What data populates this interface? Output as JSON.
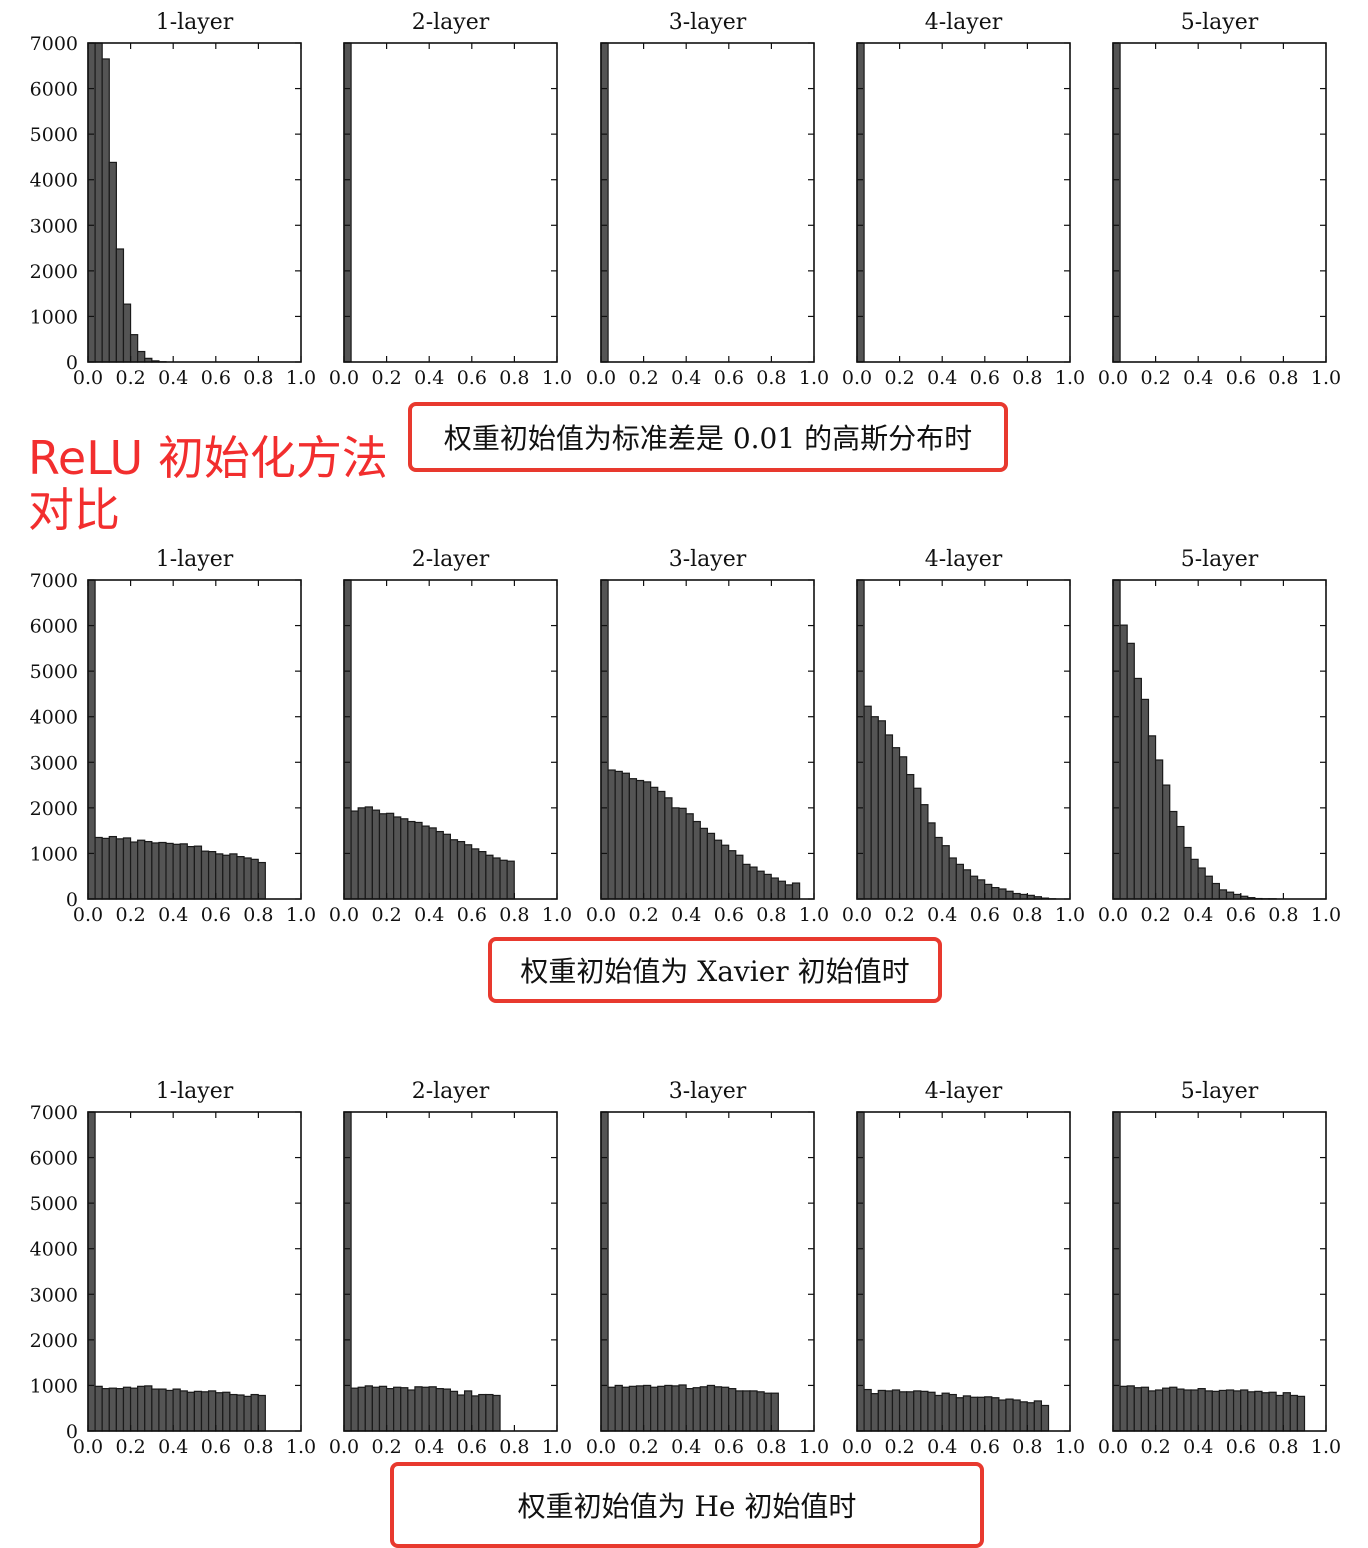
{
  "headline": {
    "line1": "ReLU 初始化方法",
    "line2": "对比"
  },
  "chart_data": [
    {
      "type": "bar",
      "caption": "权重初始值为标准差是 0.01 的高斯分布时",
      "xlim": [
        0.0,
        1.0
      ],
      "ylim": [
        0,
        7000
      ],
      "xticks": [
        "0.0",
        "0.2",
        "0.4",
        "0.6",
        "0.8",
        "1.0"
      ],
      "yticks": [
        "0",
        "1000",
        "2000",
        "3000",
        "4000",
        "5000",
        "6000",
        "7000"
      ],
      "bin_width": 0.0333,
      "panels": [
        {
          "title": "1-layer",
          "values": [
            7000,
            7000,
            6650,
            4380,
            2480,
            1270,
            600,
            230,
            80,
            25,
            5,
            0,
            0,
            0,
            0,
            0,
            0,
            0,
            0,
            0,
            0,
            0,
            0,
            0,
            0,
            0,
            0,
            0,
            0,
            0
          ]
        },
        {
          "title": "2-layer",
          "values": [
            7000,
            0,
            0,
            0,
            0,
            0,
            0,
            0,
            0,
            0,
            0,
            0,
            0,
            0,
            0,
            0,
            0,
            0,
            0,
            0,
            0,
            0,
            0,
            0,
            0,
            0,
            0,
            0,
            0,
            0
          ]
        },
        {
          "title": "3-layer",
          "values": [
            7000,
            0,
            0,
            0,
            0,
            0,
            0,
            0,
            0,
            0,
            0,
            0,
            0,
            0,
            0,
            0,
            0,
            0,
            0,
            0,
            0,
            0,
            0,
            0,
            0,
            0,
            0,
            0,
            0,
            0
          ]
        },
        {
          "title": "4-layer",
          "values": [
            7000,
            0,
            0,
            0,
            0,
            0,
            0,
            0,
            0,
            0,
            0,
            0,
            0,
            0,
            0,
            0,
            0,
            0,
            0,
            0,
            0,
            0,
            0,
            0,
            0,
            0,
            0,
            0,
            0,
            0
          ]
        },
        {
          "title": "5-layer",
          "values": [
            7000,
            0,
            0,
            0,
            0,
            0,
            0,
            0,
            0,
            0,
            0,
            0,
            0,
            0,
            0,
            0,
            0,
            0,
            0,
            0,
            0,
            0,
            0,
            0,
            0,
            0,
            0,
            0,
            0,
            0
          ]
        }
      ]
    },
    {
      "type": "bar",
      "caption": "权重初始值为 Xavier 初始值时",
      "xlim": [
        0.0,
        1.0
      ],
      "ylim": [
        0,
        7000
      ],
      "xticks": [
        "0.0",
        "0.2",
        "0.4",
        "0.6",
        "0.8",
        "1.0"
      ],
      "yticks": [
        "0",
        "1000",
        "2000",
        "3000",
        "4000",
        "5000",
        "6000",
        "7000"
      ],
      "bin_width": 0.0333,
      "panels": [
        {
          "title": "1-layer",
          "values": [
            7000,
            1350,
            1330,
            1370,
            1320,
            1340,
            1250,
            1290,
            1260,
            1230,
            1240,
            1220,
            1200,
            1210,
            1150,
            1160,
            1050,
            1040,
            990,
            960,
            990,
            930,
            900,
            870,
            800,
            0,
            0,
            0,
            0,
            0
          ]
        },
        {
          "title": "2-layer",
          "values": [
            7000,
            1930,
            2000,
            2020,
            1950,
            1870,
            1880,
            1800,
            1760,
            1700,
            1680,
            1600,
            1560,
            1480,
            1420,
            1300,
            1260,
            1190,
            1100,
            1040,
            960,
            900,
            850,
            830,
            0,
            0,
            0,
            0,
            0,
            0
          ]
        },
        {
          "title": "3-layer",
          "values": [
            7000,
            2830,
            2800,
            2760,
            2640,
            2600,
            2570,
            2450,
            2360,
            2220,
            2000,
            1990,
            1870,
            1700,
            1550,
            1440,
            1290,
            1180,
            1060,
            960,
            760,
            700,
            610,
            540,
            460,
            390,
            310,
            350,
            0,
            0
          ]
        },
        {
          "title": "4-layer",
          "values": [
            7000,
            4230,
            4000,
            3910,
            3600,
            3320,
            3120,
            2730,
            2430,
            2070,
            1670,
            1350,
            1170,
            900,
            760,
            640,
            500,
            420,
            320,
            250,
            220,
            170,
            120,
            100,
            80,
            50,
            20,
            5,
            0,
            0
          ]
        },
        {
          "title": "5-layer",
          "values": [
            7000,
            6010,
            5610,
            4840,
            4380,
            3580,
            3050,
            2500,
            1920,
            1590,
            1130,
            870,
            680,
            500,
            340,
            200,
            150,
            100,
            60,
            30,
            10,
            5,
            5,
            0,
            0,
            0,
            0,
            0,
            0,
            0
          ]
        }
      ]
    },
    {
      "type": "bar",
      "caption": "权重初始值为 He 初始值时",
      "xlim": [
        0.0,
        1.0
      ],
      "ylim": [
        0,
        7000
      ],
      "xticks": [
        "0.0",
        "0.2",
        "0.4",
        "0.6",
        "0.8",
        "1.0"
      ],
      "yticks": [
        "0",
        "1000",
        "2000",
        "3000",
        "4000",
        "5000",
        "6000",
        "7000"
      ],
      "bin_width": 0.0333,
      "panels": [
        {
          "title": "1-layer",
          "values": [
            7000,
            980,
            930,
            940,
            930,
            960,
            940,
            980,
            990,
            920,
            920,
            890,
            920,
            880,
            850,
            870,
            860,
            880,
            840,
            850,
            800,
            790,
            760,
            800,
            780,
            0,
            0,
            0,
            0,
            0
          ]
        },
        {
          "title": "2-layer",
          "values": [
            7000,
            940,
            960,
            990,
            960,
            980,
            930,
            960,
            950,
            900,
            970,
            960,
            970,
            930,
            920,
            870,
            790,
            880,
            770,
            800,
            800,
            780,
            0,
            0,
            0,
            0,
            0,
            0,
            0,
            0
          ]
        },
        {
          "title": "3-layer",
          "values": [
            7000,
            960,
            1000,
            960,
            980,
            990,
            1000,
            960,
            980,
            1000,
            990,
            1010,
            930,
            950,
            970,
            1000,
            970,
            960,
            930,
            880,
            880,
            880,
            860,
            830,
            830,
            0,
            0,
            0,
            0,
            0
          ]
        },
        {
          "title": "4-layer",
          "values": [
            7000,
            910,
            820,
            890,
            880,
            900,
            860,
            860,
            880,
            870,
            850,
            780,
            830,
            800,
            730,
            770,
            740,
            740,
            750,
            730,
            680,
            700,
            680,
            640,
            620,
            660,
            560,
            0,
            0,
            0
          ]
        },
        {
          "title": "5-layer",
          "values": [
            7000,
            980,
            990,
            950,
            960,
            880,
            900,
            940,
            960,
            920,
            900,
            900,
            930,
            880,
            870,
            890,
            900,
            880,
            900,
            860,
            870,
            840,
            850,
            780,
            840,
            780,
            760,
            0,
            0,
            0
          ]
        }
      ]
    }
  ]
}
